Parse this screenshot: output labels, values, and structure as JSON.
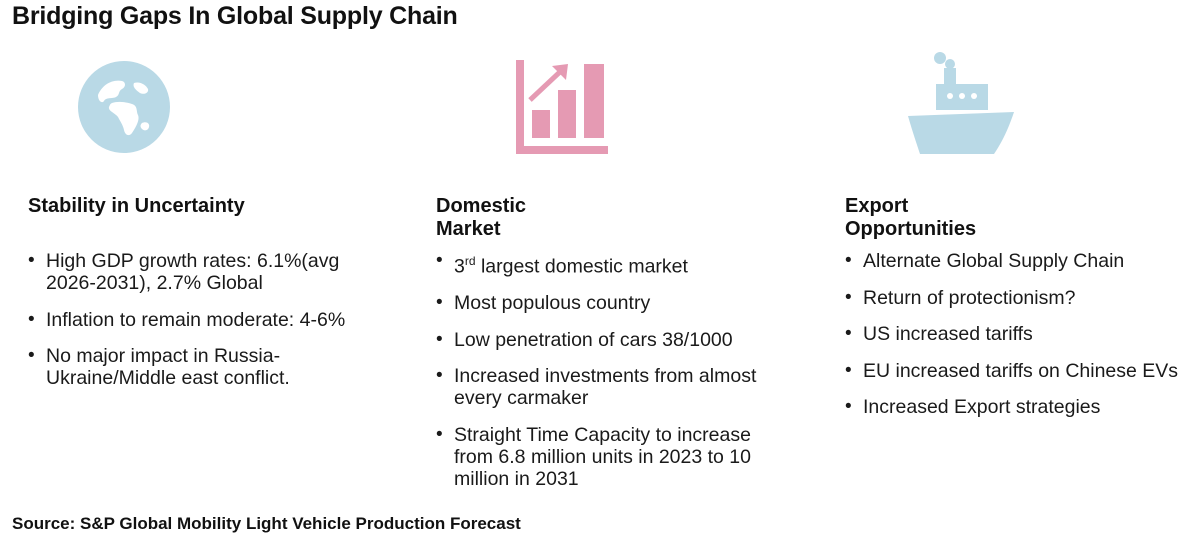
{
  "title": "Bridging Gaps In Global Supply Chain",
  "colors": {
    "globe": "#b9d9e6",
    "chart": "#e59ab3",
    "ship": "#b9d9e6"
  },
  "columns": [
    {
      "icon": "globe-icon",
      "heading": "Stability in Uncertainty",
      "bullets": [
        "High GDP growth rates: 6.1%(avg 2026-2031), 2.7% Global",
        "Inflation to remain moderate: 4-6%",
        "No major impact in Russia-Ukraine/Middle east conflict."
      ]
    },
    {
      "icon": "growth-chart-icon",
      "heading": "Domestic Market",
      "bullets": [
        {
          "num": "3",
          "sup": "rd",
          "rest": " largest domestic market"
        },
        "Most populous country",
        "Low penetration of cars 38/1000",
        "Increased investments from almost every carmaker",
        "Straight Time Capacity to increase from 6.8 million units in 2023 to 10 million in 2031"
      ]
    },
    {
      "icon": "cargo-ship-icon",
      "heading": "Export Opportunities",
      "bullets": [
        "Alternate Global Supply Chain",
        "Return of protectionism?",
        "US increased tariffs",
        "EU increased tariffs on Chinese EVs",
        "Increased Export strategies"
      ]
    }
  ],
  "source": "Source: S&P Global Mobility Light Vehicle Production Forecast"
}
